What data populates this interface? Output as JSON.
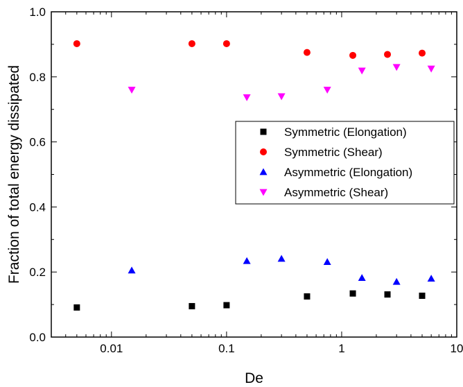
{
  "chart_data": {
    "type": "scatter",
    "x_scale": "log",
    "xlabel": "De",
    "ylabel": "Fraction of total energy dissipated",
    "xlim": [
      0.003,
      10
    ],
    "ylim": [
      0.0,
      1.0
    ],
    "x_ticks": [
      0.01,
      0.1,
      1,
      10
    ],
    "x_tick_labels": [
      "0.01",
      "0.1",
      "1",
      "10"
    ],
    "y_ticks": [
      0.0,
      0.2,
      0.4,
      0.6,
      0.8,
      1.0
    ],
    "y_tick_labels": [
      "0.0",
      "0.2",
      "0.4",
      "0.6",
      "0.8",
      "1.0"
    ],
    "grid": false,
    "legend_position": "center-right",
    "series": [
      {
        "name": "Symmetric (Elongation)",
        "marker": "square",
        "color": "#000000",
        "x": [
          0.005,
          0.05,
          0.1,
          0.5,
          1.25,
          2.5,
          5
        ],
        "y": [
          0.091,
          0.095,
          0.098,
          0.125,
          0.134,
          0.131,
          0.127
        ]
      },
      {
        "name": "Symmetric (Shear)",
        "marker": "circle",
        "color": "#ff0000",
        "x": [
          0.005,
          0.05,
          0.1,
          0.5,
          1.25,
          2.5,
          5
        ],
        "y": [
          0.902,
          0.902,
          0.902,
          0.875,
          0.866,
          0.869,
          0.873
        ]
      },
      {
        "name": "Asymmetric (Elongation)",
        "marker": "triangle-up",
        "color": "#0000ff",
        "x": [
          0.015,
          0.15,
          0.3,
          0.75,
          1.5,
          3,
          6
        ],
        "y": [
          0.205,
          0.234,
          0.241,
          0.231,
          0.182,
          0.17,
          0.18
        ]
      },
      {
        "name": "Asymmetric (Shear)",
        "marker": "triangle-down",
        "color": "#ff00ff",
        "x": [
          0.015,
          0.15,
          0.3,
          0.75,
          1.5,
          3,
          6
        ],
        "y": [
          0.76,
          0.737,
          0.74,
          0.76,
          0.819,
          0.83,
          0.825
        ]
      }
    ]
  }
}
